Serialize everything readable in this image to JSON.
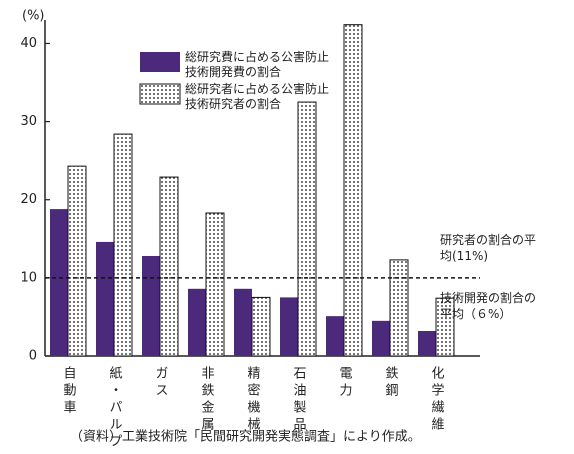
{
  "chart_data": {
    "type": "bar",
    "y_axis_label": "(%)",
    "categories": [
      "自動車",
      "紙・パルプ",
      "ガス",
      "非鉄金属",
      "精密機械",
      "石油製品",
      "電力",
      "鉄鋼",
      "化学繊維"
    ],
    "series": [
      {
        "name": "総研究費に占める公害防止技術開発費の割合",
        "color": "#4b2a7b",
        "values": [
          18.8,
          14.6,
          12.8,
          8.6,
          8.6,
          7.5,
          5.1,
          4.5,
          3.2
        ]
      },
      {
        "name": "総研究者に占める公害防止技術研究者の割合",
        "color": "#111111",
        "pattern": "dots",
        "values": [
          24.3,
          28.4,
          22.9,
          18.3,
          7.5,
          32.5,
          42.4,
          12.3,
          7.4
        ]
      }
    ],
    "ylim": [
      0,
      43
    ],
    "yticks": [
      0,
      10,
      20,
      30,
      40
    ],
    "reference_line": 10,
    "annotations": [
      "研究者の割合の平均(11%)",
      "技術開発の割合の平均（６%）"
    ],
    "source": "（資料）工業技術院「民間研究開発実態調査」により作成。"
  }
}
